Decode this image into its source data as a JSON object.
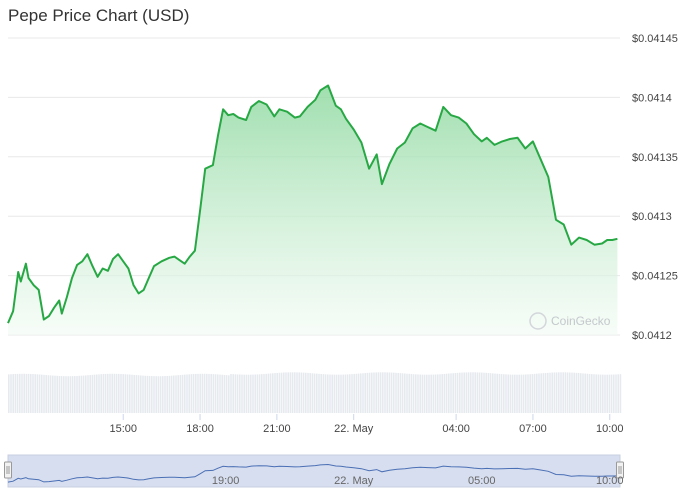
{
  "title": "Pepe Price Chart (USD)",
  "watermark": "CoinGecko",
  "colors": {
    "line": "#27a844",
    "area_top": "#8fd9a0",
    "area_bottom": "#f2fbf4",
    "volume": "#e6e9ee",
    "grid": "#e8e8e8",
    "navigator_fill": "#d7deef",
    "navigator_line": "#4a6fb5"
  },
  "chart_data": {
    "type": "area",
    "title": "Pepe Price Chart (USD)",
    "xlabel": "",
    "ylabel": "",
    "y_tick_labels": [
      "$0.0412",
      "$0.04125",
      "$0.0413",
      "$0.04135",
      "$0.0414",
      "$0.04145"
    ],
    "ylim": [
      0.0412,
      0.04145
    ],
    "x_tick_labels": [
      "15:00",
      "18:00",
      "21:00",
      "22. May",
      "04:00",
      "07:00",
      "10:00"
    ],
    "x_tick_hours": [
      15,
      18,
      21,
      24,
      28,
      31,
      34
    ],
    "xlim_hours": [
      10.5,
      34.4
    ],
    "grid": true,
    "legend": "none",
    "series": [
      {
        "x_hours": [
          10.5,
          10.7,
          10.9,
          11.0,
          11.2,
          11.3,
          11.5,
          11.7,
          11.9,
          12.1,
          12.3,
          12.5,
          12.6,
          12.8,
          13.0,
          13.2,
          13.4,
          13.6,
          13.8,
          14.0,
          14.2,
          14.4,
          14.6,
          14.8,
          15.0,
          15.2,
          15.4,
          15.6,
          15.8,
          16.0,
          16.2,
          16.5,
          16.8,
          17.0,
          17.2,
          17.4,
          17.6,
          17.8,
          18.0,
          18.2,
          18.5,
          18.7,
          18.9,
          19.1,
          19.3,
          19.5,
          19.8,
          20.0,
          20.3,
          20.6,
          20.9,
          21.1,
          21.4,
          21.7,
          21.9,
          22.2,
          22.5,
          22.7,
          23.0,
          23.3,
          23.5,
          23.7,
          24.0,
          24.3,
          24.6,
          24.9,
          25.1,
          25.4,
          25.7,
          26.0,
          26.3,
          26.6,
          26.9,
          27.2,
          27.5,
          27.8,
          28.1,
          28.4,
          28.7,
          29.0,
          29.2,
          29.5,
          29.8,
          30.1,
          30.4,
          30.7,
          31.0,
          31.3,
          31.6,
          31.9,
          32.2,
          32.5,
          32.8,
          33.1,
          33.4,
          33.7,
          33.9,
          34.1,
          34.3
        ],
        "values": [
          0.04121,
          0.04122,
          0.041253,
          0.041245,
          0.04126,
          0.041248,
          0.041242,
          0.041238,
          0.041213,
          0.041216,
          0.041223,
          0.041229,
          0.041218,
          0.041232,
          0.041248,
          0.041259,
          0.041262,
          0.041268,
          0.041258,
          0.041249,
          0.041256,
          0.041254,
          0.041264,
          0.041268,
          0.041262,
          0.041256,
          0.041242,
          0.041235,
          0.041238,
          0.041248,
          0.041258,
          0.041262,
          0.041265,
          0.041266,
          0.041263,
          0.04126,
          0.041266,
          0.041271,
          0.041305,
          0.04134,
          0.041343,
          0.041368,
          0.04139,
          0.041385,
          0.041386,
          0.041383,
          0.041381,
          0.041392,
          0.041397,
          0.041394,
          0.041384,
          0.04139,
          0.041388,
          0.041383,
          0.041384,
          0.041392,
          0.041398,
          0.041406,
          0.04141,
          0.041393,
          0.04139,
          0.041382,
          0.041373,
          0.041362,
          0.04134,
          0.041352,
          0.041327,
          0.041344,
          0.041357,
          0.041362,
          0.041374,
          0.041378,
          0.041375,
          0.041372,
          0.041392,
          0.041385,
          0.041383,
          0.041378,
          0.041369,
          0.041363,
          0.041366,
          0.04136,
          0.041363,
          0.041365,
          0.041366,
          0.041357,
          0.041363,
          0.041348,
          0.041333,
          0.041297,
          0.041293,
          0.041276,
          0.041282,
          0.04128,
          0.041276,
          0.041277,
          0.04128,
          0.04128,
          0.041281
        ]
      }
    ],
    "volume_bars": "uniform",
    "navigator": {
      "x_tick_labels": [
        "19:00",
        "22. May",
        "05:00",
        "10:00"
      ]
    }
  }
}
